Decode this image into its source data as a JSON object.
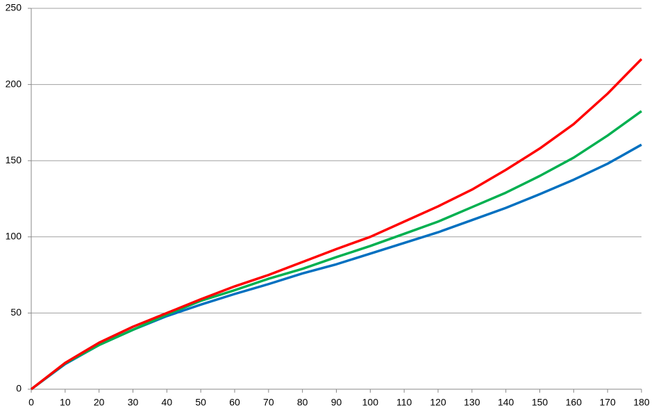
{
  "chart_data": {
    "type": "line",
    "x": [
      0,
      10,
      20,
      30,
      40,
      50,
      60,
      70,
      80,
      90,
      100,
      110,
      120,
      130,
      140,
      150,
      160,
      170,
      180
    ],
    "series": [
      {
        "color": "#0070c0",
        "values": [
          0,
          16.5,
          29,
          39,
          48,
          55.5,
          62.5,
          69,
          76,
          82,
          89,
          96,
          103,
          111,
          119,
          128,
          137.5,
          148,
          160.5
        ]
      },
      {
        "color": "#00b050",
        "values": [
          0,
          17,
          29,
          39,
          49,
          58,
          65,
          72.5,
          79,
          86.7,
          94,
          102,
          110,
          119.5,
          129,
          140,
          152,
          166.5,
          182.5
        ]
      },
      {
        "color": "#ff0000",
        "values": [
          0,
          17.3,
          30.5,
          41,
          50,
          59,
          67.5,
          75,
          83.5,
          92,
          100,
          110,
          120,
          131,
          144,
          158,
          174,
          194,
          216.7
        ]
      }
    ],
    "xlim": [
      0,
      180
    ],
    "xticks": [
      0,
      10,
      20,
      30,
      40,
      50,
      60,
      70,
      80,
      90,
      100,
      110,
      120,
      130,
      140,
      150,
      160,
      170,
      180
    ],
    "ylim": [
      0,
      250
    ],
    "yticks": [
      0,
      50,
      100,
      150,
      200,
      250
    ],
    "grid": true
  }
}
